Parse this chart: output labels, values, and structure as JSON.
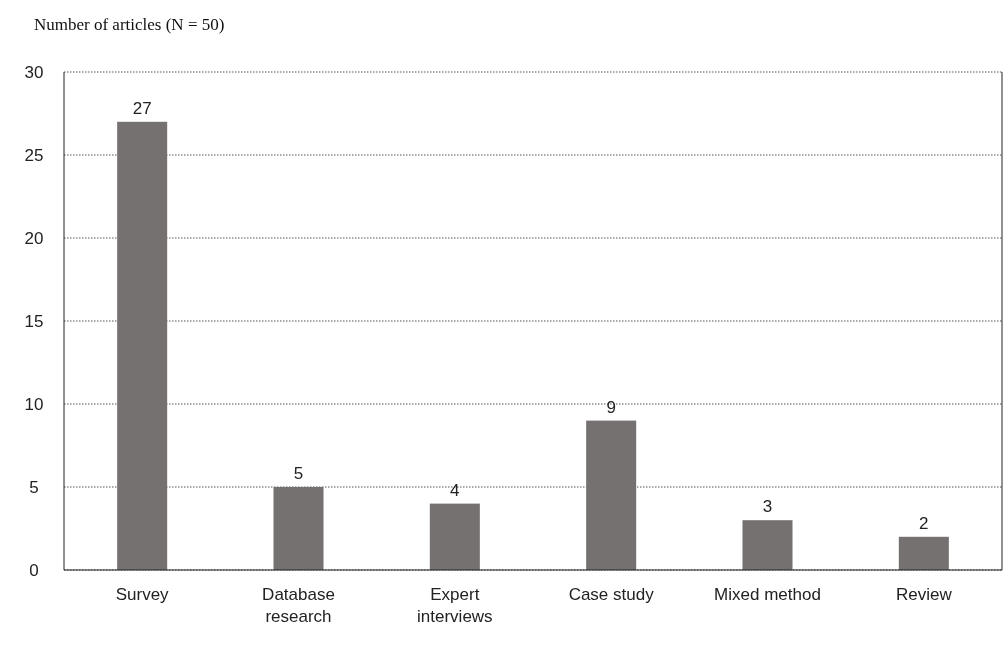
{
  "chart_data": {
    "type": "bar",
    "title": "Number of articles (N = 50)",
    "categories": [
      "Survey",
      "Database research",
      "Expert interviews",
      "Case study",
      "Mixed method",
      "Review"
    ],
    "values": [
      27,
      5,
      4,
      9,
      3,
      2
    ],
    "color": "#767171",
    "ylim": [
      0,
      30
    ],
    "yticks": [
      0,
      5,
      10,
      15,
      20,
      25,
      30
    ],
    "grid": "y",
    "data_labels": true,
    "line_style": "dotted"
  }
}
